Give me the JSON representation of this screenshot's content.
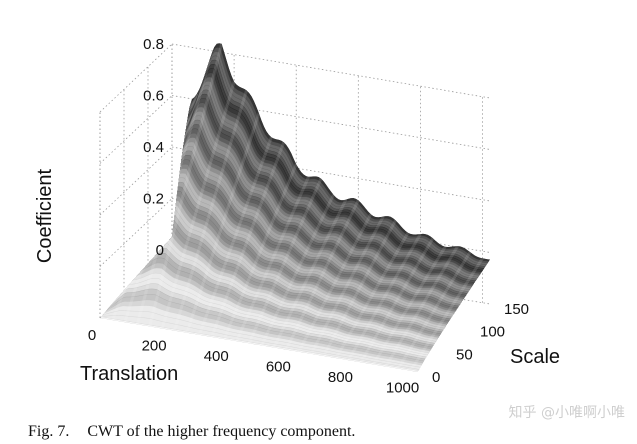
{
  "chart_data": {
    "type": "surface",
    "title": "",
    "xlabel": "Translation",
    "ylabel": "Scale",
    "zlabel": "Coefficient",
    "xlim": [
      0,
      1024
    ],
    "ylim": [
      0,
      150
    ],
    "zlim": [
      0,
      0.8
    ],
    "x_ticks": [
      "0",
      "200",
      "400",
      "600",
      "800",
      "1000"
    ],
    "y_ticks": [
      "0",
      "50",
      "100",
      "150"
    ],
    "z_ticks": [
      "0",
      "0.2",
      "0.4",
      "0.6",
      "0.8"
    ],
    "grid": true,
    "colormap": "gray",
    "ridge_peak": {
      "translation": 160,
      "scale": 150,
      "coefficient": 0.82
    },
    "ridge_profile": {
      "translation": [
        0,
        60,
        100,
        140,
        160,
        200,
        300,
        400,
        500,
        600,
        700,
        800,
        900,
        1000,
        1024
      ],
      "coefficient_at_max_scale": [
        0.05,
        0.6,
        0.7,
        0.8,
        0.82,
        0.72,
        0.55,
        0.42,
        0.34,
        0.3,
        0.26,
        0.22,
        0.2,
        0.18,
        0.17
      ]
    }
  },
  "caption": {
    "label": "Fig. 7.",
    "text": "CWT of the higher frequency component."
  },
  "watermark": {
    "text": "知乎 @小唯啊小唯"
  }
}
